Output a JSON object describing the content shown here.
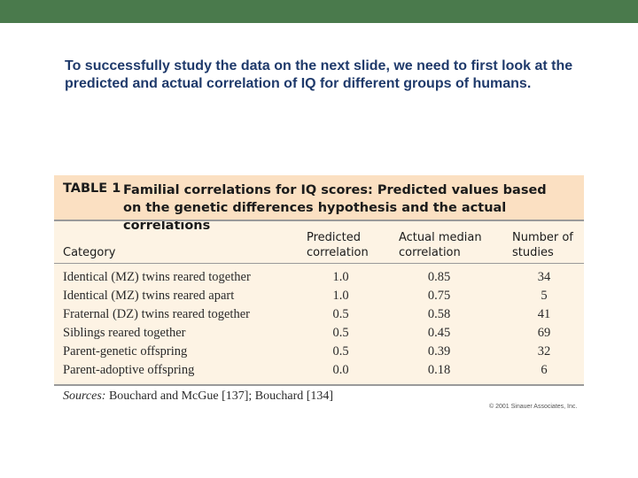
{
  "slide": {
    "intro_text": "To successfully study the data on the next slide, we need to first look at the predicted and actual correlation of IQ for different groups of humans."
  },
  "table": {
    "label": "TABLE 1",
    "title": "Familial correlations for IQ scores: Predicted values based on the genetic differences hypothesis and the actual correlations",
    "columns": {
      "category": "Category",
      "predicted": "Predicted correlation",
      "actual": "Actual median correlation",
      "number": "Number of studies"
    },
    "rows": [
      {
        "category": "Identical (MZ) twins reared together",
        "predicted": "1.0",
        "actual": "0.85",
        "number": "34"
      },
      {
        "category": "Identical (MZ) twins reared apart",
        "predicted": "1.0",
        "actual": "0.75",
        "number": "5"
      },
      {
        "category": "Fraternal (DZ) twins reared together",
        "predicted": "0.5",
        "actual": "0.58",
        "number": "41"
      },
      {
        "category": "Siblings reared together",
        "predicted": "0.5",
        "actual": "0.45",
        "number": "69"
      },
      {
        "category": "Parent-genetic offspring",
        "predicted": "0.5",
        "actual": "0.39",
        "number": "32"
      },
      {
        "category": "Parent-adoptive offspring",
        "predicted": "0.0",
        "actual": "0.18",
        "number": "6"
      }
    ],
    "sources_label": "Sources:",
    "sources_text": "Bouchard and McGue [137]; Bouchard [134]",
    "copyright": "© 2001 Sinauer Associates, Inc."
  },
  "colors": {
    "top_bar": "#4a7a4c",
    "intro_text": "#1f3a6b",
    "header_band": "#fbe0c2",
    "table_body": "#fdf3e4"
  }
}
